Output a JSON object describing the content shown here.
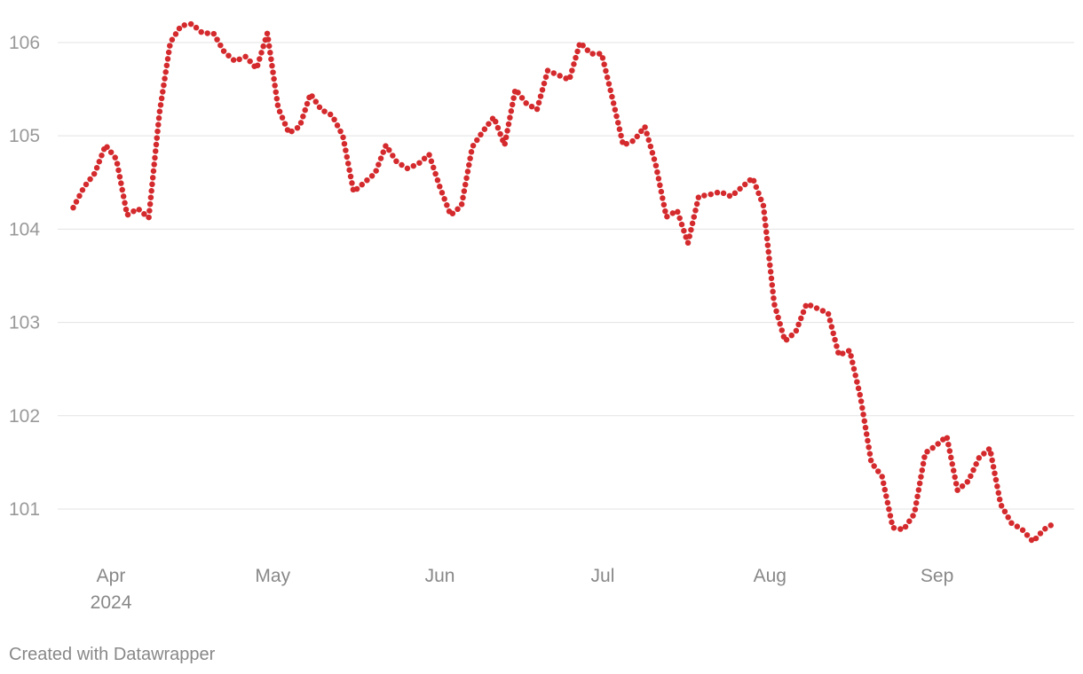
{
  "chart_data": {
    "type": "line",
    "color": "#d42a2d",
    "line_style": "dotted",
    "grid": true,
    "values": [
      104.23,
      104.45,
      104.6,
      104.9,
      104.75,
      104.15,
      104.22,
      104.12,
      105.25,
      106.0,
      106.18,
      106.2,
      106.1,
      106.1,
      105.9,
      105.8,
      105.85,
      105.72,
      106.1,
      105.3,
      105.03,
      105.1,
      105.45,
      105.28,
      105.22,
      105.0,
      104.4,
      104.5,
      104.6,
      104.9,
      104.72,
      104.65,
      104.7,
      104.8,
      104.45,
      104.15,
      104.25,
      104.88,
      105.05,
      105.2,
      104.9,
      105.5,
      105.35,
      105.28,
      105.7,
      105.65,
      105.6,
      106.0,
      105.88,
      105.88,
      105.4,
      104.9,
      104.95,
      105.1,
      104.7,
      104.13,
      104.2,
      103.85,
      104.35,
      104.37,
      104.4,
      104.35,
      104.45,
      104.55,
      104.25,
      103.2,
      102.8,
      102.9,
      103.2,
      103.15,
      103.1,
      102.65,
      102.7,
      102.2,
      101.5,
      101.35,
      100.8,
      100.78,
      100.95,
      101.6,
      101.68,
      101.78,
      101.2,
      101.3,
      101.55,
      101.65,
      101.05,
      100.85,
      100.78,
      100.65,
      100.78,
      100.85
    ],
    "xlim": [
      0,
      91
    ],
    "xticks": [
      {
        "value": 3.5,
        "label": "Apr"
      },
      {
        "value": 18.5,
        "label": "May"
      },
      {
        "value": 34,
        "label": "Jun"
      },
      {
        "value": 49.1,
        "label": "Jul"
      },
      {
        "value": 64.6,
        "label": "Aug"
      },
      {
        "value": 80.1,
        "label": "Sep"
      }
    ],
    "x_year_label": "2024",
    "ylim": [
      100.5,
      106.3
    ],
    "yticks": [
      101,
      102,
      103,
      104,
      105,
      106
    ],
    "footer": "Created with Datawrapper"
  }
}
